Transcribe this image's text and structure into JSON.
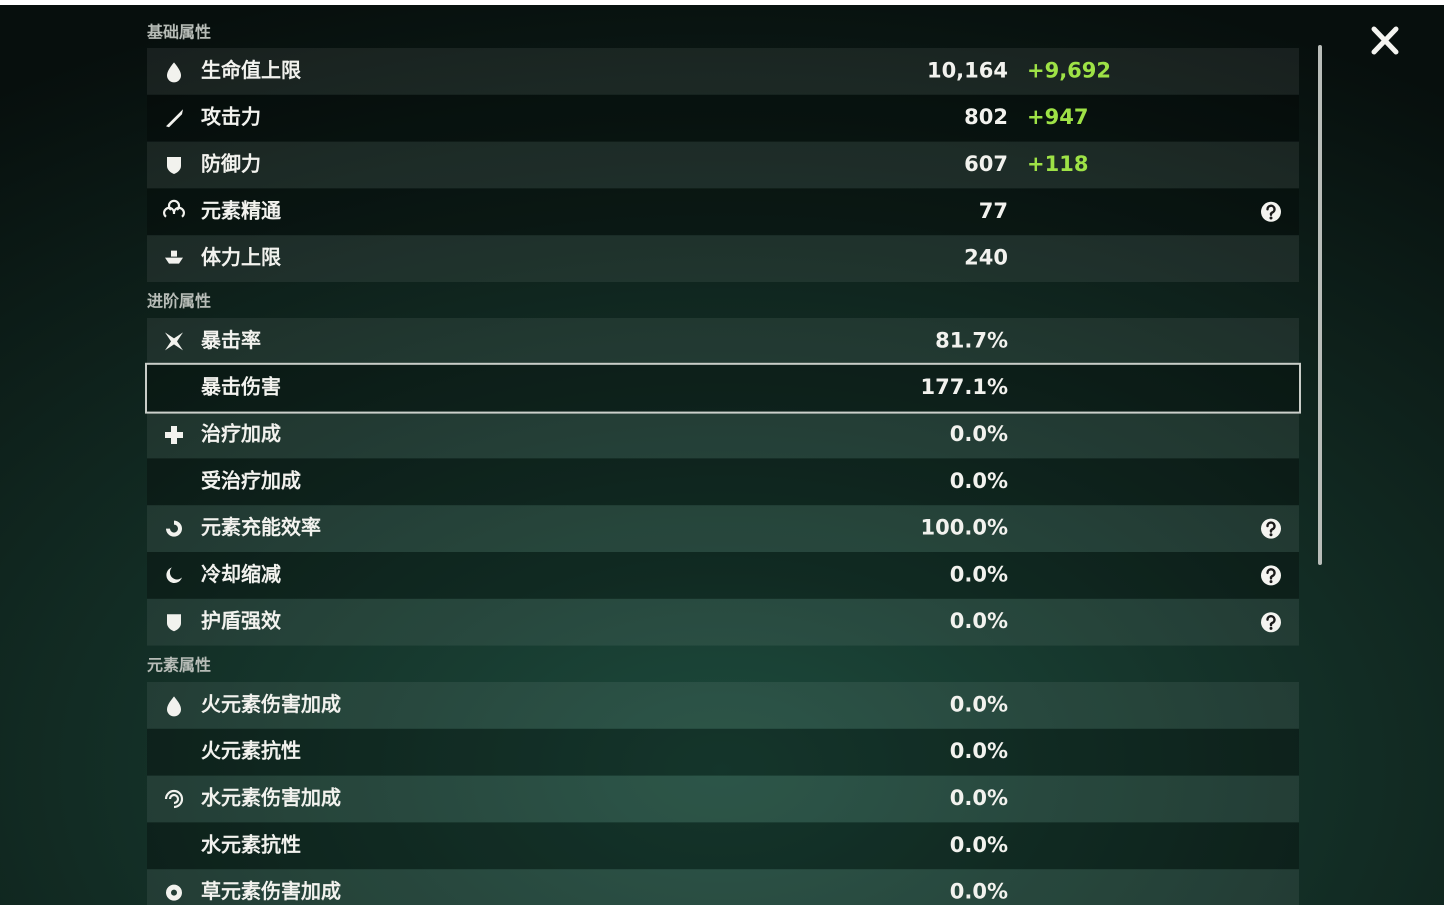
{
  "sections": [
    {
      "title": "基础属性",
      "rows": [
        {
          "label": "生命值上限",
          "value": "10,164",
          "bonus": "+9,692"
        },
        {
          "label": "攻击力",
          "value": "802",
          "bonus": "+947"
        },
        {
          "label": "防御力",
          "value": "607",
          "bonus": "+118"
        },
        {
          "label": "元素精通",
          "value": "77",
          "help": true
        },
        {
          "label": "体力上限",
          "value": "240"
        }
      ]
    },
    {
      "title": "进阶属性",
      "rows": [
        {
          "label": "暴击率",
          "value": "81.7%"
        },
        {
          "label": "暴击伤害",
          "value": "177.1%",
          "selected": true
        },
        {
          "label": "治疗加成",
          "value": "0.0%"
        },
        {
          "label": "受治疗加成",
          "value": "0.0%"
        },
        {
          "label": "元素充能效率",
          "value": "100.0%",
          "help": true
        },
        {
          "label": "冷却缩减",
          "value": "0.0%",
          "help": true
        },
        {
          "label": "护盾强效",
          "value": "0.0%",
          "help": true
        }
      ]
    },
    {
      "title": "元素属性",
      "rows": [
        {
          "label": "火元素伤害加成",
          "value": "0.0%"
        },
        {
          "label": "火元素抗性",
          "value": "0.0%"
        },
        {
          "label": "水元素伤害加成",
          "value": "0.0%"
        },
        {
          "label": "水元素抗性",
          "value": "0.0%"
        },
        {
          "label": "草元素伤害加成",
          "value": "0.0%"
        }
      ]
    }
  ]
}
